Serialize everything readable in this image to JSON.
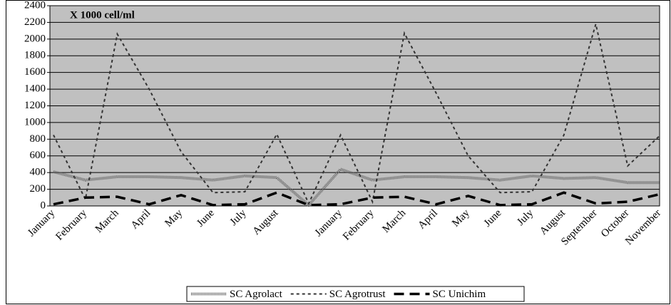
{
  "chart_data": {
    "type": "line",
    "annotation": "X 1000 cell/ml",
    "categories": [
      "January",
      "February",
      "March",
      "April",
      "May",
      "June",
      "July",
      "August",
      null,
      "January",
      "February",
      "March",
      "April",
      "May",
      "June",
      "July",
      "August",
      "September",
      "October",
      "November"
    ],
    "series": [
      {
        "name": "SC Agrolact",
        "color": "#666666",
        "dash": "1 1",
        "width": 4,
        "values": [
          410,
          310,
          350,
          350,
          340,
          310,
          360,
          340,
          10,
          440,
          310,
          350,
          350,
          340,
          310,
          360,
          330,
          340,
          280,
          280
        ]
      },
      {
        "name": "SC Agrotrust",
        "color": "#333333",
        "dash": "4 4",
        "width": 2,
        "values": [
          850,
          80,
          2060,
          1400,
          650,
          160,
          170,
          860,
          30,
          850,
          50,
          2070,
          1350,
          600,
          160,
          170,
          850,
          2180,
          480,
          840
        ]
      },
      {
        "name": "SC Unichim",
        "color": "#000000",
        "dash": "14 8",
        "width": 3.5,
        "values": [
          20,
          100,
          110,
          20,
          130,
          10,
          20,
          160,
          10,
          20,
          100,
          110,
          20,
          120,
          10,
          20,
          160,
          30,
          50,
          140
        ]
      }
    ],
    "ylim": [
      0,
      2400
    ],
    "yticks": [
      0,
      200,
      400,
      600,
      800,
      1000,
      1200,
      1400,
      1600,
      1800,
      2000,
      2200,
      2400
    ],
    "grid": true,
    "plot_background": "#c0c0c0",
    "legend": "bottom"
  }
}
